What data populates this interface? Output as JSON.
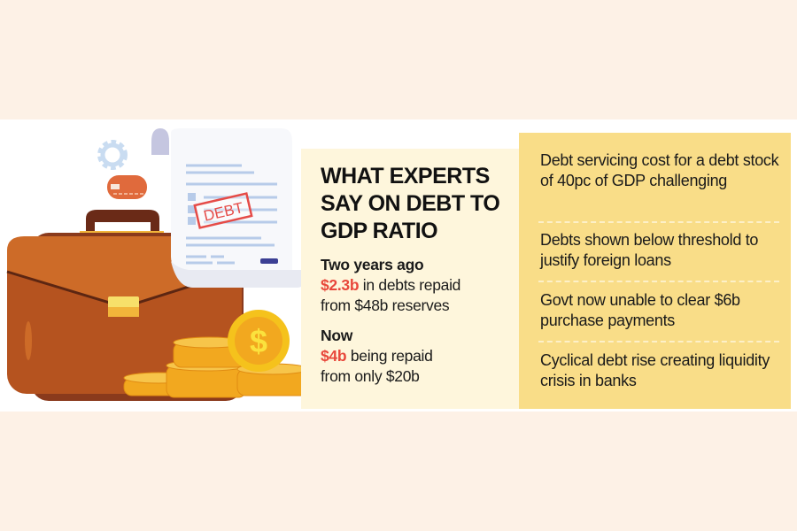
{
  "title": "WHAT EXPERTS SAY ON DEBT TO GDP RATIO",
  "past": {
    "heading": "Two years ago",
    "amount": "$2.3b",
    "text1": " in debts repaid",
    "text2": "from $48b reserves"
  },
  "now": {
    "heading": "Now",
    "amount": "$4b",
    "text1": " being repaid",
    "text2": "from only $20b"
  },
  "points": [
    "Debt servicing cost for a debt stock of 40pc of GDP challenging",
    "Debts shown below threshold to justify foreign loans",
    "Govt now unable to clear $6b purchase payments",
    "Cyclical debt rise creating liquidity crisis in banks"
  ],
  "illustration": {
    "stamp_text": "DEBT",
    "icons": [
      "gear-icon",
      "credit-card-icon",
      "briefcase-icon",
      "document-icon",
      "dollar-coin-icon",
      "coin-stack-icon"
    ]
  },
  "colors": {
    "accent_red": "#e8473a",
    "panel_yellow": "#f9dd88",
    "panel_cream": "#fef6dc",
    "background": "#fdf1e6"
  }
}
